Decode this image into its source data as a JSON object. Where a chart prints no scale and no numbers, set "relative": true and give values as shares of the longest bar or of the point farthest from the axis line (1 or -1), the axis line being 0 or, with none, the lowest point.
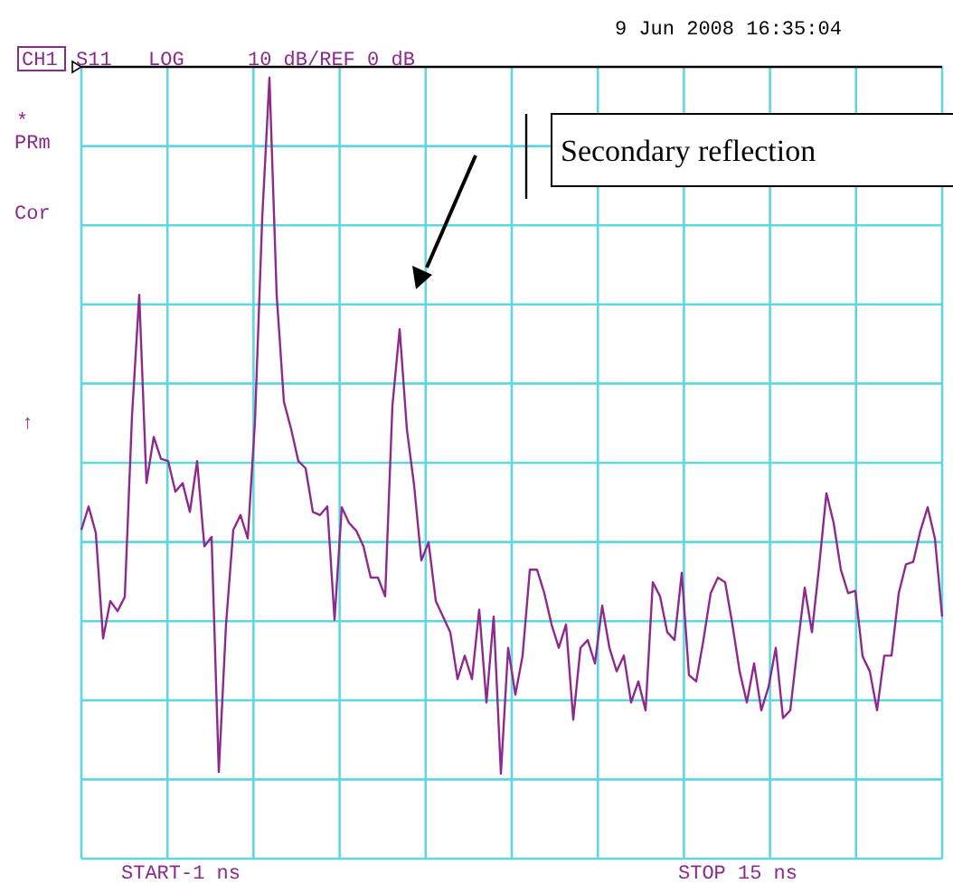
{
  "chart_data": {
    "type": "line",
    "relative": true,
    "grid": true,
    "categories": [
      null,
      null,
      null,
      null,
      null,
      null,
      null,
      null,
      null,
      null,
      null,
      null,
      null,
      null,
      null,
      null,
      null,
      null,
      null,
      null,
      null,
      null,
      null,
      null,
      null,
      null,
      null,
      null,
      null,
      null,
      null,
      null,
      null,
      null,
      null,
      null,
      null,
      null,
      null,
      null,
      null,
      null,
      null,
      null,
      null,
      null,
      null,
      null,
      null,
      null,
      null,
      null,
      null,
      null,
      null,
      null,
      null,
      null,
      null,
      null,
      null,
      null,
      null,
      null,
      null,
      null,
      null,
      null,
      null,
      null,
      null,
      null,
      null,
      null,
      null,
      null,
      null,
      null,
      null,
      null,
      null,
      null,
      null,
      null,
      null,
      null,
      null,
      null,
      null,
      null,
      null,
      null,
      null,
      null,
      null,
      null,
      null,
      null,
      null,
      null,
      null,
      null,
      null,
      null,
      null,
      null,
      null,
      null,
      null,
      null,
      null,
      null,
      null,
      null,
      null,
      null,
      null,
      null,
      null,
      null
    ],
    "annotations": [
      "9 Jun 2008  16:35:04",
      "CH1",
      "S11",
      "LOG",
      "10 dB/REF 0 dB",
      "*",
      "PRm",
      "Cor",
      "↑",
      "START-1 ns",
      "STOP 15 ns",
      "Secondary reflection"
    ],
    "series": [
      {
        "color": "#8e2a8e",
        "values": [
          0.421,
          0.451,
          0.417,
          0.282,
          0.33,
          0.317,
          0.335,
          0.567,
          0.722,
          0.481,
          0.54,
          0.512,
          0.509,
          0.47,
          0.481,
          0.444,
          0.509,
          0.4,
          0.412,
          0.111,
          0.3,
          0.421,
          0.44,
          0.41,
          0.56,
          0.82,
          1.0,
          0.722,
          0.585,
          0.55,
          0.509,
          0.5,
          0.444,
          0.44,
          0.451,
          0.306,
          0.45,
          0.43,
          0.42,
          0.4,
          0.36,
          0.36,
          0.336,
          0.58,
          0.678,
          0.55,
          0.478,
          0.382,
          0.405,
          0.33,
          0.31,
          0.29,
          0.23,
          0.26,
          0.23,
          0.319,
          0.2,
          0.31,
          0.109,
          0.27,
          0.21,
          0.26,
          0.37,
          0.37,
          0.34,
          0.3,
          0.27,
          0.3,
          0.178,
          0.27,
          0.28,
          0.25,
          0.324,
          0.27,
          0.24,
          0.26,
          0.2,
          0.227,
          0.19,
          0.354,
          0.336,
          0.29,
          0.28,
          0.366,
          0.235,
          0.227,
          0.28,
          0.34,
          0.36,
          0.354,
          0.3,
          0.24,
          0.2,
          0.25,
          0.19,
          0.22,
          0.27,
          0.18,
          0.19,
          0.27,
          0.347,
          0.29,
          0.375,
          0.468,
          0.43,
          0.37,
          0.34,
          0.343,
          0.259,
          0.24,
          0.19,
          0.26,
          0.26,
          0.34,
          0.377,
          0.38,
          0.42,
          0.45,
          0.41,
          0.31
        ]
      }
    ]
  }
}
